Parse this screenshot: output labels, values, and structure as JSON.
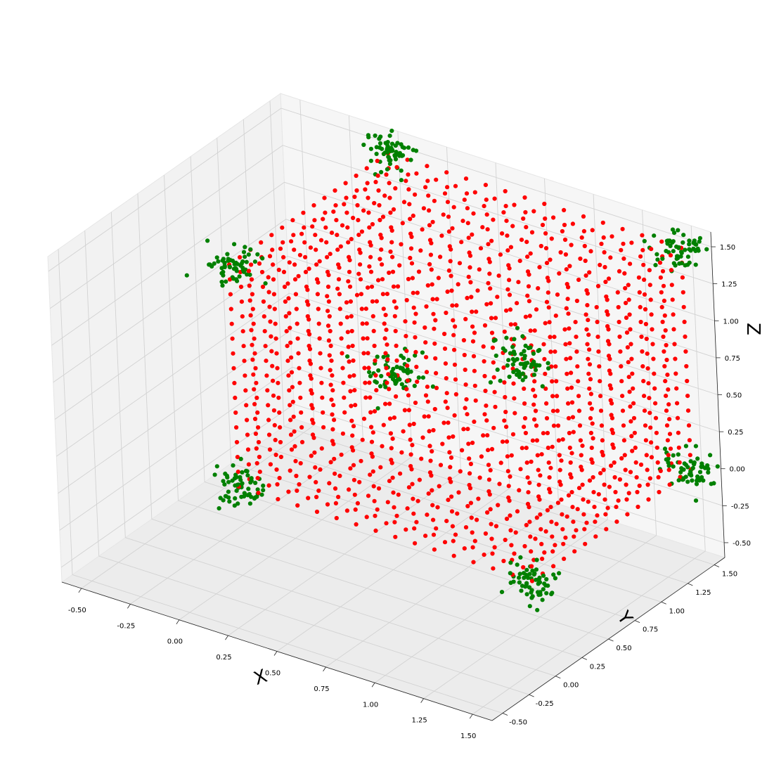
{
  "chart_data": {
    "type": "scatter",
    "projection": "3d",
    "title": "",
    "xlabel": "X",
    "ylabel": "Y",
    "zlabel": "Z",
    "xlim": [
      -0.6,
      1.6
    ],
    "ylim": [
      -0.6,
      1.6
    ],
    "zlim": [
      -0.6,
      1.6
    ],
    "xticks": [
      "-0.50",
      "-0.25",
      "0.00",
      "0.25",
      "0.50",
      "0.75",
      "1.00",
      "1.25",
      "1.50"
    ],
    "yticks": [
      "-0.50",
      "-0.25",
      "0.00",
      "0.25",
      "0.50",
      "0.75",
      "1.00",
      "1.25",
      "1.50"
    ],
    "zticks": [
      "-0.50",
      "-0.25",
      "0.00",
      "0.25",
      "0.50",
      "0.75",
      "1.00",
      "1.25",
      "1.50"
    ],
    "grid": true,
    "legend": "none",
    "colors": {
      "lattice": "#ff0000",
      "clusters": "#008000",
      "pane": "#f2f2f2",
      "grid": "#d2d2d2"
    },
    "series": [
      {
        "color": "#ff0000",
        "marker": "circle",
        "kind": "lattice",
        "description": "Points on the six faces of a 1.5-unit cube, spaced 0.1",
        "axis_values": [
          0,
          0.1,
          0.2,
          0.3,
          0.4,
          0.5,
          0.6,
          0.7,
          0.8,
          0.9,
          1.0,
          1.1,
          1.2,
          1.3,
          1.4,
          1.5
        ]
      },
      {
        "color": "#008000",
        "marker": "circle",
        "kind": "clusters",
        "points_per_cluster": 60,
        "spread": 0.06,
        "centers": [
          [
            0,
            0,
            0
          ],
          [
            1.5,
            0,
            0
          ],
          [
            0,
            1.5,
            0
          ],
          [
            1.5,
            1.5,
            0
          ],
          [
            0,
            0,
            1.5
          ],
          [
            1.5,
            0,
            1.5
          ],
          [
            0,
            1.5,
            1.5
          ],
          [
            1.5,
            1.5,
            1.5
          ]
        ]
      }
    ]
  }
}
